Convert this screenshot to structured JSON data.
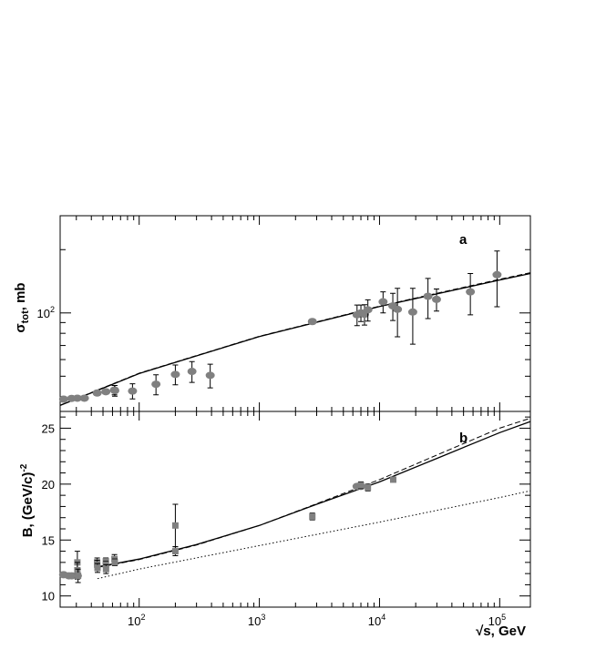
{
  "chart_data": [
    {
      "type": "scatter",
      "panel_label": "a",
      "ylabel": "σ_tot, mb",
      "xlabel": "",
      "xscale": "log",
      "yscale": "log",
      "xlim": [
        22,
        180000
      ],
      "ylim": [
        34,
        290
      ],
      "xticks": [
        {
          "value": 100,
          "base": "10",
          "exp": "2"
        },
        {
          "value": 1000,
          "base": "10",
          "exp": "3"
        },
        {
          "value": 10000,
          "base": "10",
          "exp": "4"
        },
        {
          "value": 100000,
          "base": "10",
          "exp": "5"
        }
      ],
      "yticks": [
        {
          "value": 100,
          "base": "10",
          "exp": "2"
        }
      ],
      "grid": false,
      "series": [
        {
          "marker": "circle",
          "color": "#808080",
          "points": [
            {
              "x": 23.5,
              "y": 38.9,
              "err": 0.3
            },
            {
              "x": 27.4,
              "y": 39.2,
              "err": 0.3
            },
            {
              "x": 30.6,
              "y": 39.3,
              "err": 0.3
            },
            {
              "x": 35,
              "y": 39.3,
              "err": 0.4
            },
            {
              "x": 44.7,
              "y": 41.6,
              "err": 0.5
            },
            {
              "x": 52.8,
              "y": 42.2,
              "err": 0.6
            },
            {
              "x": 62.3,
              "y": 43.0,
              "err": 2.2
            },
            {
              "x": 62.7,
              "y": 42.7,
              "err": 2.5
            },
            {
              "x": 88,
              "y": 42.5,
              "err": 3.5
            },
            {
              "x": 138,
              "y": 45.8,
              "err": 5.0
            },
            {
              "x": 200,
              "y": 51.0,
              "err": 5.5
            },
            {
              "x": 275,
              "y": 52.7,
              "err": 6.0
            },
            {
              "x": 390,
              "y": 50.5,
              "err": 6.5
            },
            {
              "x": 2760,
              "y": 91.0,
              "err": 1.5
            },
            {
              "x": 6500,
              "y": 98.0,
              "err": 11
            },
            {
              "x": 7000,
              "y": 100.0,
              "err": 9
            },
            {
              "x": 7500,
              "y": 98.5,
              "err": 11
            },
            {
              "x": 8000,
              "y": 103.5,
              "err": 12
            },
            {
              "x": 10700,
              "y": 113.0,
              "err": 13
            },
            {
              "x": 12900,
              "y": 108.0,
              "err": 16
            },
            {
              "x": 14100,
              "y": 104.0,
              "err": 27
            },
            {
              "x": 18900,
              "y": 101.0,
              "err": 30
            },
            {
              "x": 25300,
              "y": 120.0,
              "err": 26
            },
            {
              "x": 29800,
              "y": 116.0,
              "err": 14
            },
            {
              "x": 57000,
              "y": 126.0,
              "err": 28
            },
            {
              "x": 95000,
              "y": 152.0,
              "err": 45
            }
          ]
        }
      ],
      "lines": [
        {
          "style": "solid",
          "x": [
            22,
            100,
            1000,
            10000,
            100000,
            180000
          ],
          "y": [
            36.3,
            51.5,
            77.2,
            107.2,
            143.5,
            154.0
          ]
        },
        {
          "style": "dashed",
          "x": [
            22,
            100,
            1000,
            10000,
            100000,
            180000
          ],
          "y": [
            36.4,
            51.7,
            77.5,
            107.8,
            144.6,
            155.3
          ]
        }
      ]
    },
    {
      "type": "scatter",
      "panel_label": "b",
      "ylabel": "B, (GeV/c)⁻²",
      "xlabel": "√s, GeV",
      "xscale": "log",
      "xlim": [
        22,
        180000
      ],
      "ylim": [
        9,
        26.5
      ],
      "xticks": [
        {
          "value": 100,
          "base": "10",
          "exp": "2"
        },
        {
          "value": 1000,
          "base": "10",
          "exp": "3"
        },
        {
          "value": 10000,
          "base": "10",
          "exp": "4"
        },
        {
          "value": 100000,
          "base": "10",
          "exp": "5"
        }
      ],
      "yticks": [
        {
          "value": 10,
          "label": "10"
        },
        {
          "value": 15,
          "label": "15"
        },
        {
          "value": 20,
          "label": "20"
        },
        {
          "value": 25,
          "label": "25"
        }
      ],
      "grid": false,
      "series": [
        {
          "marker": "circle",
          "color": "#808080",
          "points": [
            {
              "x": 23.5,
              "y": 11.9,
              "err": 0.1
            },
            {
              "x": 26,
              "y": 11.8,
              "err": 0.1
            },
            {
              "x": 27.5,
              "y": 11.8,
              "err": 0.1
            },
            {
              "x": 30.6,
              "y": 11.8,
              "err": 0.3
            },
            {
              "x": 6500,
              "y": 19.8,
              "err": 0.2
            },
            {
              "x": 7000,
              "y": 19.8,
              "err": 0.2
            }
          ]
        },
        {
          "marker": "square",
          "color": "#808080",
          "points": [
            {
              "x": 30.6,
              "y": 13.0,
              "err": 1.0
            },
            {
              "x": 30.6,
              "y": 12.3,
              "err": 0.7
            },
            {
              "x": 31,
              "y": 11.8,
              "err": 0.6
            },
            {
              "x": 44.7,
              "y": 13.0,
              "err": 0.4
            },
            {
              "x": 44.7,
              "y": 12.8,
              "err": 0.4
            },
            {
              "x": 45,
              "y": 12.5,
              "err": 0.4
            },
            {
              "x": 52.8,
              "y": 13.1,
              "err": 0.3
            },
            {
              "x": 52.8,
              "y": 12.8,
              "err": 0.3
            },
            {
              "x": 53,
              "y": 12.4,
              "err": 0.4
            },
            {
              "x": 62.3,
              "y": 13.3,
              "err": 0.4
            },
            {
              "x": 62.7,
              "y": 13.0,
              "err": 0.3
            },
            {
              "x": 200,
              "y": 16.3,
              "err": 1.9
            },
            {
              "x": 200,
              "y": 14.0,
              "err": 0.4
            },
            {
              "x": 2760,
              "y": 17.1,
              "err": 0.3
            },
            {
              "x": 7000,
              "y": 19.9,
              "err": 0.3
            },
            {
              "x": 8000,
              "y": 19.7,
              "err": 0.3
            },
            {
              "x": 13000,
              "y": 20.4,
              "err": 0.2
            }
          ]
        }
      ],
      "lines": [
        {
          "style": "solid",
          "x": [
            45,
            100,
            300,
            1000,
            3000,
            10000,
            30000,
            100000,
            180000
          ],
          "y": [
            12.6,
            13.3,
            14.6,
            16.3,
            18.2,
            20.2,
            22.3,
            24.6,
            25.6
          ]
        },
        {
          "style": "dashed",
          "x": [
            45,
            100,
            300,
            1000,
            3000,
            10000,
            30000,
            100000,
            180000
          ],
          "y": [
            12.55,
            13.25,
            14.55,
            16.3,
            18.25,
            20.4,
            22.6,
            25.0,
            25.9
          ]
        },
        {
          "style": "dotted",
          "x": [
            45,
            100,
            1000,
            10000,
            100000,
            180000
          ],
          "y": [
            11.55,
            12.4,
            14.5,
            16.6,
            18.8,
            19.4
          ]
        }
      ]
    }
  ]
}
